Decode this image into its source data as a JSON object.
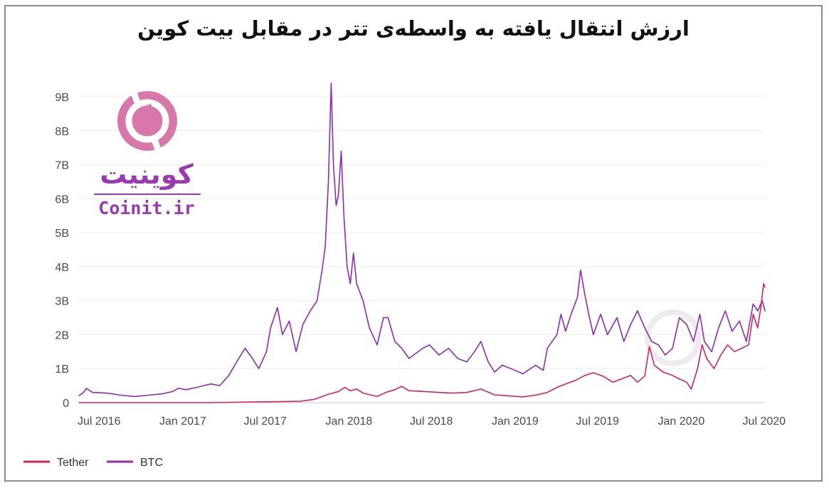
{
  "chart_data": {
    "type": "line",
    "title": "ارزش انتقال یافته به واسطه‌ی تتر در مقابل بیت کوین",
    "xlabel": "",
    "ylabel": "",
    "x_tick_labels": [
      "Jul 2016",
      "Jan 2017",
      "Jul 2017",
      "Jan 2018",
      "Jul 2018",
      "Jan 2019",
      "Jul 2019",
      "Jan 2020",
      "Jul 2020"
    ],
    "y_tick_labels": [
      "0",
      "1B",
      "2B",
      "3B",
      "4B",
      "5B",
      "6B",
      "7B",
      "8B",
      "9B"
    ],
    "ylim": [
      0,
      9000000000
    ],
    "xlim": [
      "2016-06-15",
      "2020-07-31"
    ],
    "grid": true,
    "legend": "bottom-left",
    "series": [
      {
        "name": "Tether",
        "color": "#d6215e",
        "points": [
          [
            "2016-06-15",
            0
          ],
          [
            "2016-10-01",
            0
          ],
          [
            "2017-01-01",
            0
          ],
          [
            "2017-04-01",
            0
          ],
          [
            "2017-07-01",
            20000000
          ],
          [
            "2017-09-01",
            30000000
          ],
          [
            "2017-10-15",
            40000000
          ],
          [
            "2017-11-15",
            100000000
          ],
          [
            "2017-12-15",
            250000000
          ],
          [
            "2018-01-05",
            320000000
          ],
          [
            "2018-01-20",
            450000000
          ],
          [
            "2018-02-01",
            350000000
          ],
          [
            "2018-02-15",
            400000000
          ],
          [
            "2018-03-01",
            280000000
          ],
          [
            "2018-04-01",
            180000000
          ],
          [
            "2018-04-20",
            300000000
          ],
          [
            "2018-05-10",
            380000000
          ],
          [
            "2018-05-25",
            480000000
          ],
          [
            "2018-06-10",
            350000000
          ],
          [
            "2018-07-10",
            330000000
          ],
          [
            "2018-08-15",
            300000000
          ],
          [
            "2018-09-15",
            280000000
          ],
          [
            "2018-10-15",
            300000000
          ],
          [
            "2018-11-15",
            400000000
          ],
          [
            "2018-12-15",
            230000000
          ],
          [
            "2019-01-15",
            200000000
          ],
          [
            "2019-02-15",
            170000000
          ],
          [
            "2019-03-15",
            220000000
          ],
          [
            "2019-04-10",
            300000000
          ],
          [
            "2019-05-01",
            450000000
          ],
          [
            "2019-05-20",
            550000000
          ],
          [
            "2019-06-10",
            650000000
          ],
          [
            "2019-07-01",
            800000000
          ],
          [
            "2019-07-20",
            880000000
          ],
          [
            "2019-08-10",
            780000000
          ],
          [
            "2019-09-01",
            600000000
          ],
          [
            "2019-09-20",
            700000000
          ],
          [
            "2019-10-10",
            800000000
          ],
          [
            "2019-10-25",
            600000000
          ],
          [
            "2019-11-10",
            780000000
          ],
          [
            "2019-11-20",
            1650000000
          ],
          [
            "2019-12-01",
            1100000000
          ],
          [
            "2019-12-20",
            900000000
          ],
          [
            "2020-01-10",
            800000000
          ],
          [
            "2020-01-25",
            700000000
          ],
          [
            "2020-02-10",
            600000000
          ],
          [
            "2020-02-20",
            400000000
          ],
          [
            "2020-03-05",
            1000000000
          ],
          [
            "2020-03-15",
            1700000000
          ],
          [
            "2020-03-25",
            1300000000
          ],
          [
            "2020-04-10",
            1000000000
          ],
          [
            "2020-04-25",
            1400000000
          ],
          [
            "2020-05-10",
            1700000000
          ],
          [
            "2020-05-25",
            1500000000
          ],
          [
            "2020-06-10",
            1600000000
          ],
          [
            "2020-06-25",
            1700000000
          ],
          [
            "2020-07-05",
            2600000000
          ],
          [
            "2020-07-15",
            2200000000
          ],
          [
            "2020-07-22",
            2800000000
          ],
          [
            "2020-07-28",
            3500000000
          ],
          [
            "2020-07-31",
            3400000000
          ]
        ]
      },
      {
        "name": "BTC",
        "color": "#8e2bb0",
        "points": [
          [
            "2016-06-15",
            200000000
          ],
          [
            "2016-06-25",
            300000000
          ],
          [
            "2016-07-01",
            420000000
          ],
          [
            "2016-07-15",
            300000000
          ],
          [
            "2016-08-15",
            280000000
          ],
          [
            "2016-09-15",
            220000000
          ],
          [
            "2016-10-15",
            180000000
          ],
          [
            "2016-11-15",
            220000000
          ],
          [
            "2016-12-15",
            260000000
          ],
          [
            "2017-01-05",
            320000000
          ],
          [
            "2017-01-20",
            420000000
          ],
          [
            "2017-02-05",
            380000000
          ],
          [
            "2017-03-01",
            450000000
          ],
          [
            "2017-04-01",
            550000000
          ],
          [
            "2017-04-20",
            500000000
          ],
          [
            "2017-05-10",
            800000000
          ],
          [
            "2017-06-01",
            1300000000
          ],
          [
            "2017-06-15",
            1600000000
          ],
          [
            "2017-07-01",
            1300000000
          ],
          [
            "2017-07-15",
            1000000000
          ],
          [
            "2017-08-01",
            1500000000
          ],
          [
            "2017-08-10",
            2200000000
          ],
          [
            "2017-08-25",
            2800000000
          ],
          [
            "2017-09-05",
            2000000000
          ],
          [
            "2017-09-20",
            2400000000
          ],
          [
            "2017-10-05",
            1500000000
          ],
          [
            "2017-10-20",
            2300000000
          ],
          [
            "2017-11-05",
            2700000000
          ],
          [
            "2017-11-20",
            3000000000
          ],
          [
            "2017-12-01",
            3900000000
          ],
          [
            "2017-12-08",
            4600000000
          ],
          [
            "2017-12-15",
            6500000000
          ],
          [
            "2017-12-21",
            9400000000
          ],
          [
            "2017-12-26",
            7000000000
          ],
          [
            "2018-01-01",
            5800000000
          ],
          [
            "2018-01-06",
            6100000000
          ],
          [
            "2018-01-12",
            7400000000
          ],
          [
            "2018-01-18",
            5500000000
          ],
          [
            "2018-01-25",
            4000000000
          ],
          [
            "2018-02-01",
            3500000000
          ],
          [
            "2018-02-08",
            4400000000
          ],
          [
            "2018-02-15",
            3500000000
          ],
          [
            "2018-03-01",
            3000000000
          ],
          [
            "2018-03-15",
            2200000000
          ],
          [
            "2018-04-01",
            1700000000
          ],
          [
            "2018-04-15",
            2500000000
          ],
          [
            "2018-04-25",
            2500000000
          ],
          [
            "2018-05-10",
            1800000000
          ],
          [
            "2018-05-25",
            1600000000
          ],
          [
            "2018-06-10",
            1300000000
          ],
          [
            "2018-07-10",
            1600000000
          ],
          [
            "2018-07-25",
            1700000000
          ],
          [
            "2018-08-15",
            1400000000
          ],
          [
            "2018-09-05",
            1600000000
          ],
          [
            "2018-09-25",
            1300000000
          ],
          [
            "2018-10-15",
            1200000000
          ],
          [
            "2018-11-01",
            1500000000
          ],
          [
            "2018-11-15",
            1800000000
          ],
          [
            "2018-12-01",
            1200000000
          ],
          [
            "2018-12-15",
            900000000
          ],
          [
            "2019-01-01",
            1100000000
          ],
          [
            "2019-01-20",
            1000000000
          ],
          [
            "2019-02-15",
            850000000
          ],
          [
            "2019-03-15",
            1100000000
          ],
          [
            "2019-04-01",
            950000000
          ],
          [
            "2019-04-10",
            1600000000
          ],
          [
            "2019-05-01",
            2000000000
          ],
          [
            "2019-05-10",
            2600000000
          ],
          [
            "2019-05-20",
            2100000000
          ],
          [
            "2019-06-01",
            2600000000
          ],
          [
            "2019-06-15",
            3100000000
          ],
          [
            "2019-06-22",
            3900000000
          ],
          [
            "2019-07-01",
            3200000000
          ],
          [
            "2019-07-10",
            2600000000
          ],
          [
            "2019-07-20",
            2000000000
          ],
          [
            "2019-08-05",
            2600000000
          ],
          [
            "2019-08-20",
            2000000000
          ],
          [
            "2019-09-10",
            2500000000
          ],
          [
            "2019-09-25",
            1800000000
          ],
          [
            "2019-10-10",
            2300000000
          ],
          [
            "2019-10-25",
            2700000000
          ],
          [
            "2019-11-10",
            2200000000
          ],
          [
            "2019-11-25",
            1800000000
          ],
          [
            "2019-12-10",
            1700000000
          ],
          [
            "2019-12-25",
            1400000000
          ],
          [
            "2020-01-10",
            1600000000
          ],
          [
            "2020-01-25",
            2500000000
          ],
          [
            "2020-02-10",
            2300000000
          ],
          [
            "2020-02-25",
            1800000000
          ],
          [
            "2020-03-10",
            2600000000
          ],
          [
            "2020-03-20",
            1800000000
          ],
          [
            "2020-04-05",
            1500000000
          ],
          [
            "2020-04-20",
            2200000000
          ],
          [
            "2020-05-05",
            2700000000
          ],
          [
            "2020-05-20",
            2100000000
          ],
          [
            "2020-06-05",
            2400000000
          ],
          [
            "2020-06-20",
            1800000000
          ],
          [
            "2020-07-05",
            2900000000
          ],
          [
            "2020-07-15",
            2700000000
          ],
          [
            "2020-07-25",
            3000000000
          ],
          [
            "2020-07-31",
            2700000000
          ]
        ]
      }
    ]
  },
  "logo": {
    "name_fa": "کوینیت",
    "name_en": "Coinit.ir",
    "icon": "coinit-logo-icon",
    "color": "#9a3ab0"
  }
}
